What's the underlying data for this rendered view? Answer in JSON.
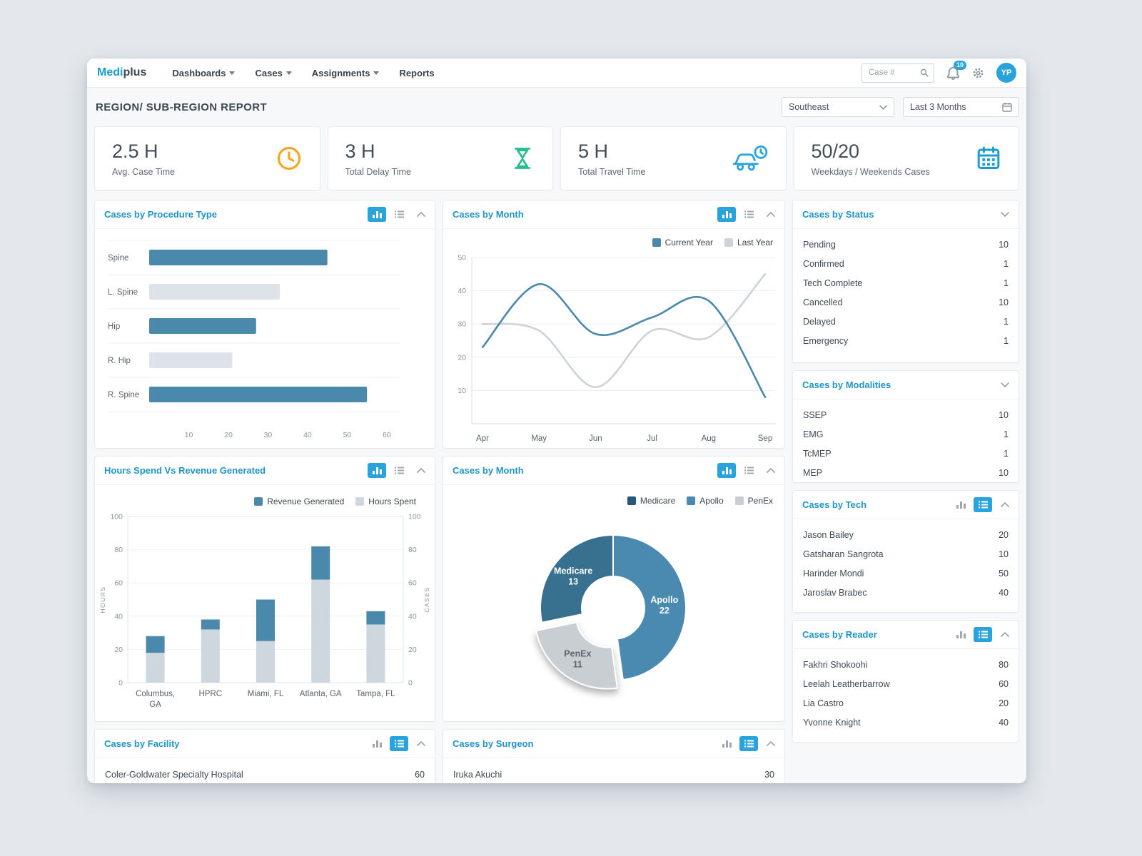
{
  "nav": {
    "brand_bold": "Medi",
    "brand_rest": "plus",
    "items": [
      {
        "label": "Dashboards"
      },
      {
        "label": "Cases"
      },
      {
        "label": "Assignments"
      },
      {
        "label": "Reports"
      }
    ],
    "search_placeholder": "Case #",
    "notification_count": "10",
    "avatar": "YP"
  },
  "header": {
    "title": "REGION/ SUB-REGION REPORT",
    "region_select": "Southeast",
    "date_range": "Last 3 Months"
  },
  "kpis": [
    {
      "value": "2.5 H",
      "label": "Avg. Case Time",
      "icon": "clock-icon",
      "color": "#f5a623"
    },
    {
      "value": "3 H",
      "label": "Total Delay Time",
      "icon": "hourglass-icon",
      "color": "#27bd8f"
    },
    {
      "value": "5 H",
      "label": "Total Travel Time",
      "icon": "car-clock-icon",
      "color": "#29a3dc"
    },
    {
      "value": "50/20",
      "label": "Weekdays / Weekends Cases",
      "icon": "calendar-grid-icon",
      "color": "#1d9bd8"
    }
  ],
  "panels": {
    "procedure": {
      "title": "Cases by Procedure Type"
    },
    "month_line": {
      "title": "Cases by Month"
    },
    "hours_revenue": {
      "title": "Hours Spend Vs Revenue Generated"
    },
    "month_donut": {
      "title": "Cases by Month"
    },
    "status": {
      "title": "Cases by Status",
      "rows": [
        [
          "Pending",
          "10"
        ],
        [
          "Confirmed",
          "1"
        ],
        [
          "Tech Complete",
          "1"
        ],
        [
          "Cancelled",
          "10"
        ],
        [
          "Delayed",
          "1"
        ],
        [
          "Emergency",
          "1"
        ]
      ]
    },
    "modalities": {
      "title": "Cases by Modalities",
      "rows": [
        [
          "SSEP",
          "10"
        ],
        [
          "EMG",
          "1"
        ],
        [
          "TcMEP",
          "1"
        ],
        [
          "MEP",
          "10"
        ]
      ]
    },
    "tech": {
      "title": "Cases by Tech",
      "rows": [
        [
          "Jason Bailey",
          "20"
        ],
        [
          "Gatsharan Sangrota",
          "10"
        ],
        [
          "Harinder Mondi",
          "50"
        ],
        [
          "Jaroslav Brabec",
          "40"
        ]
      ]
    },
    "reader": {
      "title": "Cases by Reader",
      "rows": [
        [
          "Fakhri Shokoohi",
          "80"
        ],
        [
          "Leelah Leatherbarrow",
          "60"
        ],
        [
          "Lia Castro",
          "20"
        ],
        [
          "Yvonne Knight",
          "40"
        ]
      ]
    },
    "facility": {
      "title": "Cases by Facility",
      "rows": [
        [
          "Coler-Goldwater Specialty Hospital",
          "60"
        ]
      ]
    },
    "surgeon": {
      "title": "Cases by Surgeon",
      "rows": [
        [
          "Iruka Akuchi",
          "30"
        ]
      ]
    }
  },
  "chart_data": [
    {
      "id": "procedure",
      "type": "bar",
      "orientation": "horizontal",
      "title": "Cases by Procedure Type",
      "categories": [
        "Spine",
        "L. Spine",
        "Hip",
        "R. Hip",
        "R. Spine"
      ],
      "values": [
        45,
        33,
        27,
        21,
        55
      ],
      "bar_colors": [
        "#4b89ac",
        "#dde3e8",
        "#4b89ac",
        "#dde3e8",
        "#4b89ac"
      ],
      "xlim": [
        0,
        62
      ],
      "xticks": [
        10,
        20,
        30,
        40,
        50,
        60
      ]
    },
    {
      "id": "month_line",
      "type": "line",
      "title": "Cases by Month",
      "x": [
        "Apr",
        "May",
        "Jun",
        "Jul",
        "Aug",
        "Sep"
      ],
      "series": [
        {
          "name": "Current Year",
          "color": "#4b89ac",
          "values": [
            23,
            42,
            27,
            32,
            37,
            8
          ]
        },
        {
          "name": "Last Year",
          "color": "#ccd3d9",
          "values": [
            30,
            28,
            11,
            28,
            26,
            45
          ]
        }
      ],
      "ylim": [
        0,
        50
      ],
      "yticks": [
        10,
        20,
        30,
        40,
        50
      ],
      "legend": [
        {
          "label": "Current Year",
          "color": "#4b89ac"
        },
        {
          "label": "Last Year",
          "color": "#ccd3d9"
        }
      ]
    },
    {
      "id": "hours_revenue",
      "type": "bar",
      "stacked": true,
      "title": "Hours Spend Vs Revenue Generated",
      "categories": [
        "Columbus,\nGA",
        "HPRC",
        "Miami, FL",
        "Atlanta, GA",
        "Tampa, FL"
      ],
      "series": [
        {
          "name": "Hours Spent",
          "color": "#cdd7dd",
          "values": [
            18,
            32,
            25,
            62,
            35
          ]
        },
        {
          "name": "Revenue Generated",
          "color": "#4b89ac",
          "values": [
            10,
            6,
            25,
            20,
            8
          ]
        }
      ],
      "ylim": [
        0,
        100
      ],
      "yticks": [
        0,
        20,
        40,
        60,
        80,
        100
      ],
      "ylabel_left": "HOURS",
      "ylabel_right": "CASES",
      "legend": [
        {
          "label": "Revenue Generated",
          "color": "#4b89ac"
        },
        {
          "label": "Hours Spent",
          "color": "#cdd7dd"
        }
      ]
    },
    {
      "id": "month_donut",
      "type": "pie",
      "title": "Cases by Month",
      "slices": [
        {
          "label": "Apollo",
          "value": 22,
          "color": "#4a8ab1",
          "text_color": "#ffffff"
        },
        {
          "label": "PenEx",
          "value": 11,
          "color": "#c9ced2",
          "text_color": "#5c666e",
          "offset": true
        },
        {
          "label": "Medicare",
          "value": 13,
          "color": "#38718f",
          "text_color": "#ffffff"
        }
      ],
      "legend": [
        {
          "label": "Medicare",
          "color": "#245a77"
        },
        {
          "label": "Apollo",
          "color": "#4a8ab1"
        },
        {
          "label": "PenEx",
          "color": "#c9ced2"
        }
      ]
    }
  ]
}
